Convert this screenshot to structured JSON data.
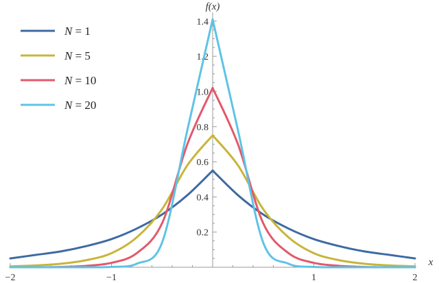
{
  "chart_data": {
    "type": "line",
    "title": "",
    "xlabel": "x",
    "ylabel": "f(x)",
    "xlim": [
      -2,
      2
    ],
    "ylim": [
      0,
      1.45
    ],
    "x_ticks": [
      -2,
      -1,
      1,
      2
    ],
    "x_tick_labels": [
      "−2",
      "−1",
      "1",
      "2"
    ],
    "y_ticks": [
      0.2,
      0.4,
      0.6,
      0.8,
      1.0,
      1.2,
      1.4
    ],
    "y_tick_labels": [
      "0.2",
      "0.4",
      "0.6",
      "0.8",
      "1.0",
      "1.2",
      "1.4"
    ],
    "grid": false,
    "legend_position": "top-left",
    "x": [
      -2,
      -1.75,
      -1.5,
      -1.25,
      -1,
      -0.75,
      -0.5,
      -0.25,
      0,
      0.25,
      0.5,
      0.75,
      1,
      1.25,
      1.5,
      1.75,
      2
    ],
    "series": [
      {
        "name": "N = 1",
        "legend": {
          "symbol": "N",
          "rest": " = 1"
        },
        "color": "#3d6aa2",
        "values": [
          0.05,
          0.07,
          0.09,
          0.12,
          0.16,
          0.22,
          0.3,
          0.41,
          0.55,
          0.41,
          0.3,
          0.22,
          0.16,
          0.12,
          0.09,
          0.07,
          0.05
        ]
      },
      {
        "name": "N = 5",
        "legend": {
          "symbol": "N",
          "rest": " = 5"
        },
        "color": "#c8b43a",
        "values": [
          0.005,
          0.01,
          0.02,
          0.04,
          0.08,
          0.17,
          0.33,
          0.58,
          0.75,
          0.58,
          0.33,
          0.17,
          0.08,
          0.04,
          0.02,
          0.01,
          0.005
        ]
      },
      {
        "name": "N = 10",
        "legend": {
          "symbol": "N",
          "rest": " = 10"
        },
        "color": "#e2596a",
        "values": [
          0.0,
          0.0,
          0.002,
          0.008,
          0.025,
          0.08,
          0.25,
          0.7,
          1.02,
          0.7,
          0.25,
          0.08,
          0.025,
          0.008,
          0.002,
          0.0,
          0.0
        ]
      },
      {
        "name": "N = 20",
        "legend": {
          "symbol": "N",
          "rest": " = 20"
        },
        "color": "#5ec3e6",
        "values": [
          0.0,
          0.0,
          0.0,
          0.0,
          0.002,
          0.02,
          0.14,
          0.78,
          1.41,
          0.78,
          0.14,
          0.02,
          0.002,
          0.0,
          0.0,
          0.0,
          0.0
        ]
      }
    ]
  }
}
